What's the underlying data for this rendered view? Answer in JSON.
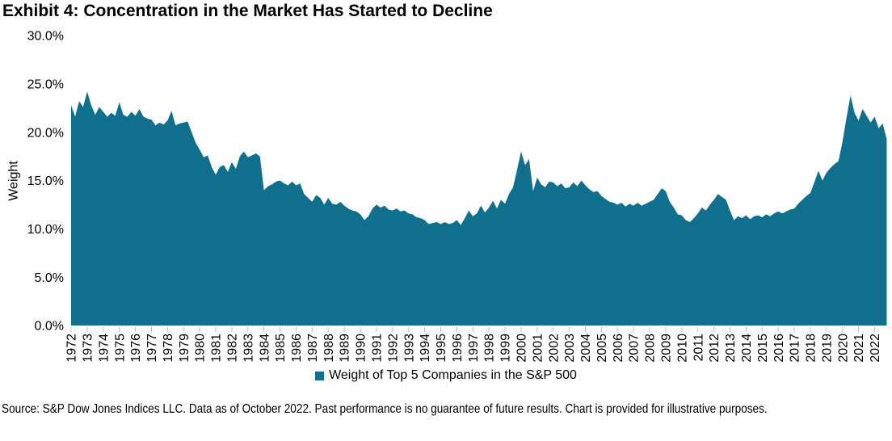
{
  "title": "Exhibit 4: Concentration in the Market Has Started to Decline",
  "source_note": {
    "text": "Source: S&P Dow Jones Indices LLC. Data as of October 2022. Past performance is no guarantee of future results. Chart is provided for illustrative purposes."
  },
  "colors": {
    "area": "#0F6F8D",
    "tick": "#BFBFBF",
    "text": "#000000",
    "background": "#FFFFFF"
  },
  "chart_data": {
    "type": "area",
    "title": "Exhibit 4: Concentration in the Market Has Started to Decline",
    "xlabel": "",
    "ylabel": "Weight",
    "ylim": [
      0,
      30
    ],
    "grid": false,
    "legend_position": "bottom",
    "yticks": [
      30,
      25,
      20,
      15,
      10,
      5,
      0
    ],
    "ytick_labels": [
      "30.0%",
      "25.0%",
      "20.0%",
      "15.0%",
      "10.0%",
      "5.0%",
      "0.0%"
    ],
    "x_tick_years": [
      1972,
      1973,
      1974,
      1975,
      1976,
      1977,
      1978,
      1979,
      1980,
      1981,
      1982,
      1983,
      1984,
      1985,
      1986,
      1987,
      1988,
      1989,
      1990,
      1991,
      1992,
      1993,
      1994,
      1995,
      1996,
      1997,
      1998,
      1999,
      2000,
      2001,
      2002,
      2003,
      2004,
      2005,
      2006,
      2007,
      2008,
      2009,
      2010,
      2011,
      2012,
      2013,
      2014,
      2015,
      2016,
      2017,
      2018,
      2019,
      2020,
      2021,
      2022
    ],
    "x_start_year": 1972,
    "points_per_year": 4,
    "x_end_label": "October 2022",
    "series": [
      {
        "name": "Weight of Top 5 Companies in the S&P 500",
        "unit": "percent",
        "frequency": "quarterly",
        "values": [
          22.8,
          21.6,
          23.2,
          22.6,
          24.2,
          22.8,
          21.8,
          22.6,
          22.1,
          21.6,
          22.0,
          21.7,
          23.1,
          21.8,
          21.6,
          22.1,
          21.7,
          22.4,
          21.6,
          21.4,
          21.3,
          20.7,
          21.0,
          20.8,
          21.2,
          22.2,
          20.7,
          20.9,
          21.0,
          21.1,
          20.0,
          18.9,
          18.2,
          17.4,
          17.6,
          16.4,
          15.6,
          16.4,
          16.6,
          15.9,
          16.9,
          16.2,
          17.5,
          18.0,
          17.4,
          17.6,
          17.8,
          17.5,
          14.0,
          14.4,
          14.6,
          14.9,
          15.0,
          14.7,
          14.5,
          14.9,
          14.5,
          14.7,
          13.6,
          13.2,
          12.8,
          13.5,
          13.2,
          12.5,
          13.2,
          12.6,
          12.5,
          12.8,
          12.4,
          12.1,
          11.9,
          11.8,
          11.5,
          10.9,
          11.3,
          12.1,
          12.5,
          12.2,
          12.4,
          12.0,
          11.9,
          12.1,
          11.8,
          11.9,
          11.6,
          11.5,
          11.2,
          11.1,
          10.9,
          10.5,
          10.6,
          10.7,
          10.5,
          10.7,
          10.5,
          10.6,
          10.9,
          10.4,
          11.1,
          11.9,
          11.3,
          11.6,
          12.4,
          11.7,
          12.2,
          12.9,
          12.1,
          13.0,
          12.6,
          13.6,
          14.3,
          16.1,
          18.0,
          16.6,
          17.2,
          13.9,
          15.3,
          14.6,
          14.3,
          14.9,
          14.8,
          14.4,
          14.7,
          14.2,
          14.3,
          14.8,
          14.4,
          15.0,
          14.5,
          14.1,
          13.8,
          13.9,
          13.4,
          13.1,
          12.8,
          12.7,
          12.5,
          12.7,
          12.3,
          12.6,
          12.4,
          12.7,
          12.4,
          12.6,
          12.8,
          13.0,
          13.6,
          14.2,
          13.9,
          12.8,
          12.2,
          11.5,
          11.4,
          10.9,
          10.7,
          11.1,
          11.6,
          12.2,
          11.9,
          12.5,
          13.0,
          13.6,
          13.3,
          13.0,
          11.9,
          10.9,
          11.3,
          11.1,
          11.4,
          11.0,
          11.3,
          11.4,
          11.2,
          11.5,
          11.3,
          11.6,
          11.8,
          11.6,
          11.8,
          12.0,
          12.1,
          12.6,
          13.0,
          13.4,
          13.7,
          14.8,
          16.0,
          15.0,
          15.8,
          16.3,
          16.7,
          17.0,
          19.0,
          21.5,
          23.8,
          22.0,
          21.2,
          22.4,
          21.7,
          21.0,
          21.6,
          20.4,
          20.9,
          19.3
        ]
      }
    ]
  }
}
